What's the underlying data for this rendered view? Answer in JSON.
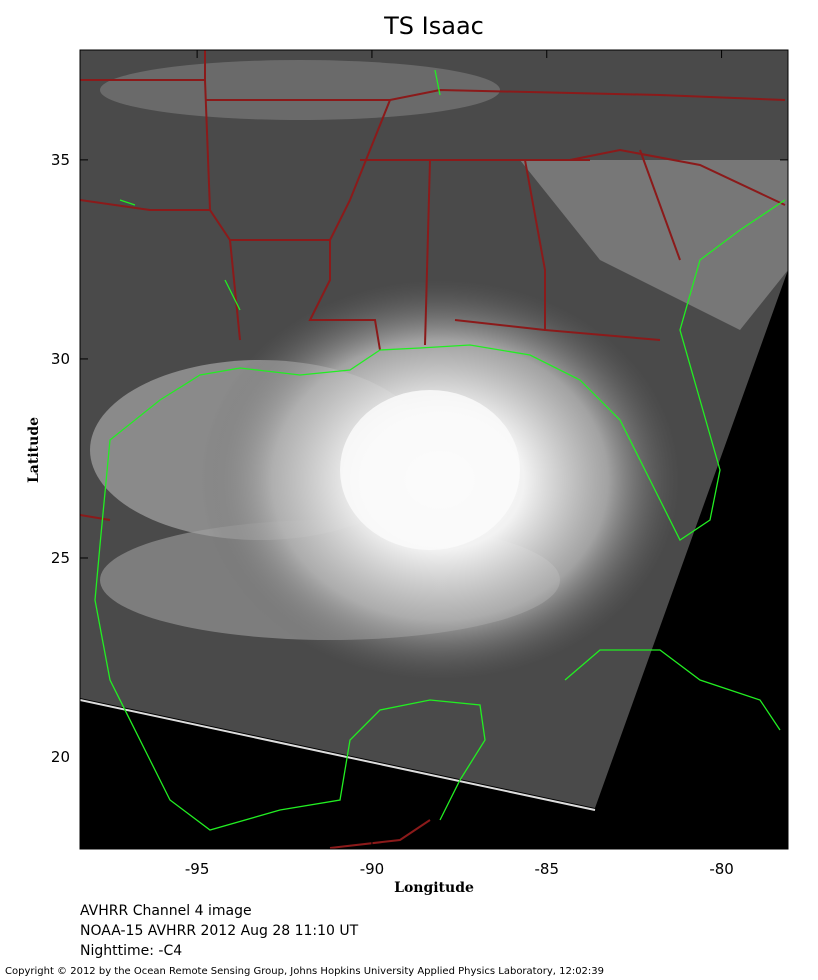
{
  "chart_data": {
    "type": "map",
    "title": "TS Isaac",
    "xlabel": "Longitude",
    "ylabel": "Latitude",
    "xlim": [
      -98.35,
      -78.1
    ],
    "ylim": [
      17.69,
      37.76
    ],
    "xticks": [
      -95,
      -90,
      -85,
      -80
    ],
    "yticks": [
      20,
      25,
      30,
      35
    ],
    "annotations": [
      "AVHRR Channel 4 image",
      "NOAA-15 AVHRR 2012 Aug 28 11:10 UT",
      "Nighttime: -C4"
    ],
    "copyright": "Copyright © 2012 by the Ocean Remote Sensing Group, Johns Hopkins University Applied Physics Laboratory, 12:02:39"
  }
}
